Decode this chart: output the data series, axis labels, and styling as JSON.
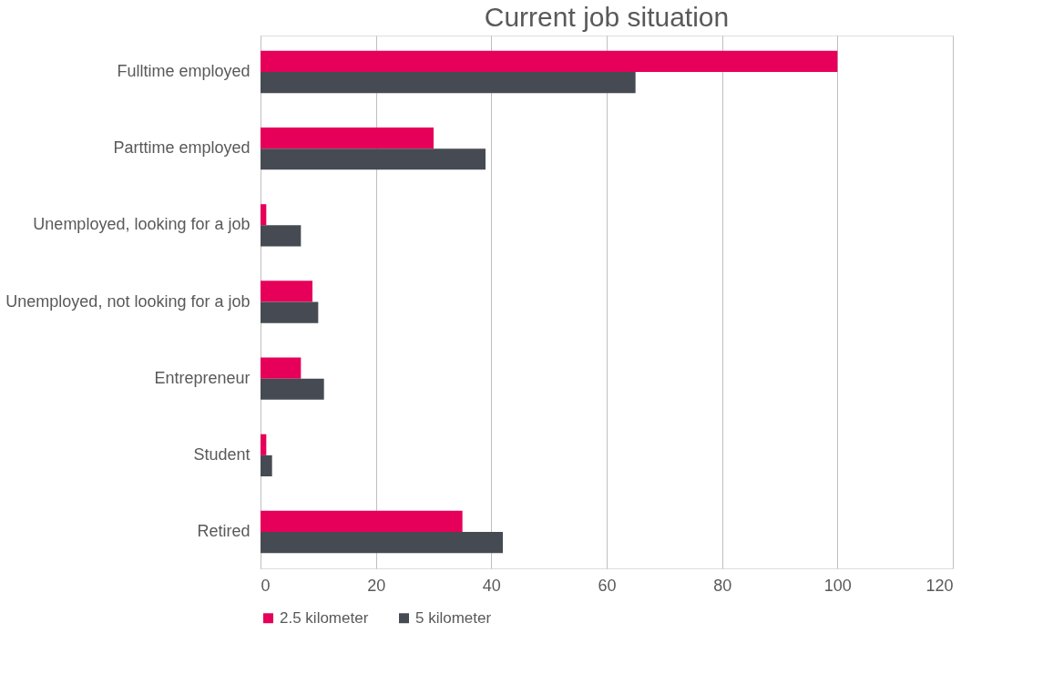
{
  "chart_data": {
    "type": "bar",
    "orientation": "horizontal",
    "title": "Current job situation",
    "categories": [
      "Fulltime employed",
      "Parttime employed",
      "Unemployed, looking for a job",
      "Unemployed, not looking for a job",
      "Entrepreneur",
      "Student",
      "Retired"
    ],
    "series": [
      {
        "name": "2.5 kilometer",
        "color": "#e6005a",
        "values": [
          100,
          30,
          1,
          9,
          7,
          1,
          35
        ]
      },
      {
        "name": "5 kilometer",
        "color": "#464b53",
        "values": [
          65,
          39,
          7,
          10,
          11,
          2,
          42
        ]
      }
    ],
    "xlim": [
      0,
      120
    ],
    "xticks": [
      0,
      20,
      40,
      60,
      80,
      100,
      120
    ],
    "grid": "x",
    "legend": "bottom"
  }
}
